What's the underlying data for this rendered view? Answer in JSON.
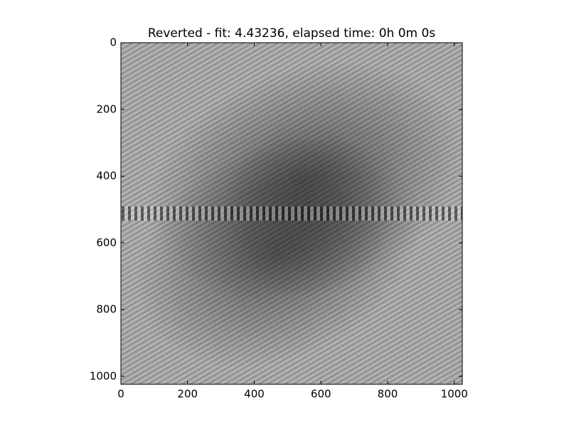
{
  "chart_data": {
    "type": "image",
    "title": "Reverted - fit: 4.43236, elapsed time: 0h 0m 0s",
    "xlim": [
      0,
      1024
    ],
    "xticks": [
      0,
      200,
      400,
      600,
      800,
      1000
    ],
    "ylim": [
      1024,
      0
    ],
    "yticks": [
      0,
      200,
      400,
      600,
      800,
      1000
    ],
    "colormap": "gray"
  }
}
